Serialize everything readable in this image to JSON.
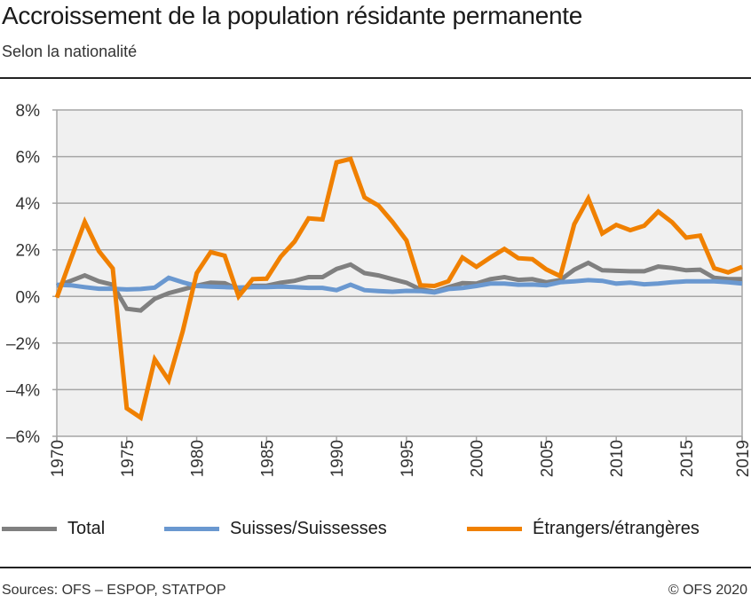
{
  "title": "Accroissement de la population résidante permanente",
  "subtitle": "Selon la nationalité",
  "footer": {
    "sources": "Sources: OFS – ESPOP, STATPOP",
    "copyright": "© OFS 2020"
  },
  "chart_data": {
    "type": "line",
    "title": "Accroissement de la population résidante permanente",
    "subtitle": "Selon la nationalité",
    "xlabel": "",
    "ylabel": "",
    "xlim": [
      1970,
      2019
    ],
    "ylim": [
      -6,
      8
    ],
    "yticks": [
      -6,
      -4,
      -2,
      0,
      2,
      4,
      6,
      8
    ],
    "ytick_labels": [
      "–6%",
      "–4%",
      "–2%",
      "0%",
      "2%",
      "4%",
      "6%",
      "8%"
    ],
    "xtick_labels": [
      "1970",
      "1975",
      "1980",
      "1985",
      "1990",
      "1995",
      "2000",
      "2005",
      "2010",
      "2015",
      "2019"
    ],
    "grid": true,
    "legend": "bottom",
    "background": "#f0f0f0",
    "x": [
      1970,
      1971,
      1972,
      1973,
      1974,
      1975,
      1976,
      1977,
      1978,
      1979,
      1980,
      1981,
      1982,
      1983,
      1984,
      1985,
      1986,
      1987,
      1988,
      1989,
      1990,
      1991,
      1992,
      1993,
      1994,
      1995,
      1996,
      1997,
      1998,
      1999,
      2000,
      2001,
      2002,
      2003,
      2004,
      2005,
      2006,
      2007,
      2008,
      2009,
      2010,
      2011,
      2012,
      2013,
      2014,
      2015,
      2016,
      2017,
      2018,
      2019
    ],
    "series": [
      {
        "name": "Total",
        "color": "#808080",
        "values": [
          0.45,
          0.67,
          0.9,
          0.65,
          0.5,
          -0.53,
          -0.6,
          -0.1,
          0.14,
          0.3,
          0.46,
          0.59,
          0.57,
          0.3,
          0.46,
          0.46,
          0.59,
          0.67,
          0.83,
          0.83,
          1.18,
          1.37,
          1.0,
          0.9,
          0.74,
          0.59,
          0.3,
          0.2,
          0.4,
          0.57,
          0.55,
          0.74,
          0.83,
          0.71,
          0.74,
          0.61,
          0.7,
          1.15,
          1.44,
          1.12,
          1.1,
          1.08,
          1.08,
          1.28,
          1.22,
          1.12,
          1.15,
          0.8,
          0.74,
          0.74
        ]
      },
      {
        "name": "Suisses/Suissesses",
        "color": "#6a98d0",
        "values": [
          0.5,
          0.48,
          0.4,
          0.33,
          0.33,
          0.3,
          0.32,
          0.38,
          0.8,
          0.61,
          0.45,
          0.42,
          0.4,
          0.38,
          0.4,
          0.4,
          0.42,
          0.4,
          0.37,
          0.37,
          0.27,
          0.5,
          0.27,
          0.23,
          0.2,
          0.24,
          0.23,
          0.17,
          0.32,
          0.36,
          0.45,
          0.55,
          0.55,
          0.5,
          0.51,
          0.48,
          0.61,
          0.65,
          0.7,
          0.67,
          0.55,
          0.59,
          0.52,
          0.55,
          0.61,
          0.65,
          0.65,
          0.65,
          0.61,
          0.55
        ]
      },
      {
        "name": "Étrangers/étrangères",
        "color": "#f08000",
        "values": [
          -0.05,
          1.6,
          3.2,
          1.95,
          1.2,
          -4.8,
          -5.2,
          -2.7,
          -3.6,
          -1.5,
          1.0,
          1.9,
          1.75,
          0.0,
          0.74,
          0.76,
          1.7,
          2.35,
          3.35,
          3.3,
          5.75,
          5.9,
          4.25,
          3.9,
          3.2,
          2.4,
          0.48,
          0.45,
          0.65,
          1.67,
          1.27,
          1.67,
          2.04,
          1.64,
          1.6,
          1.16,
          0.87,
          3.1,
          4.2,
          2.7,
          3.07,
          2.84,
          3.03,
          3.64,
          3.18,
          2.52,
          2.61,
          1.21,
          1.03,
          1.27
        ]
      }
    ]
  }
}
